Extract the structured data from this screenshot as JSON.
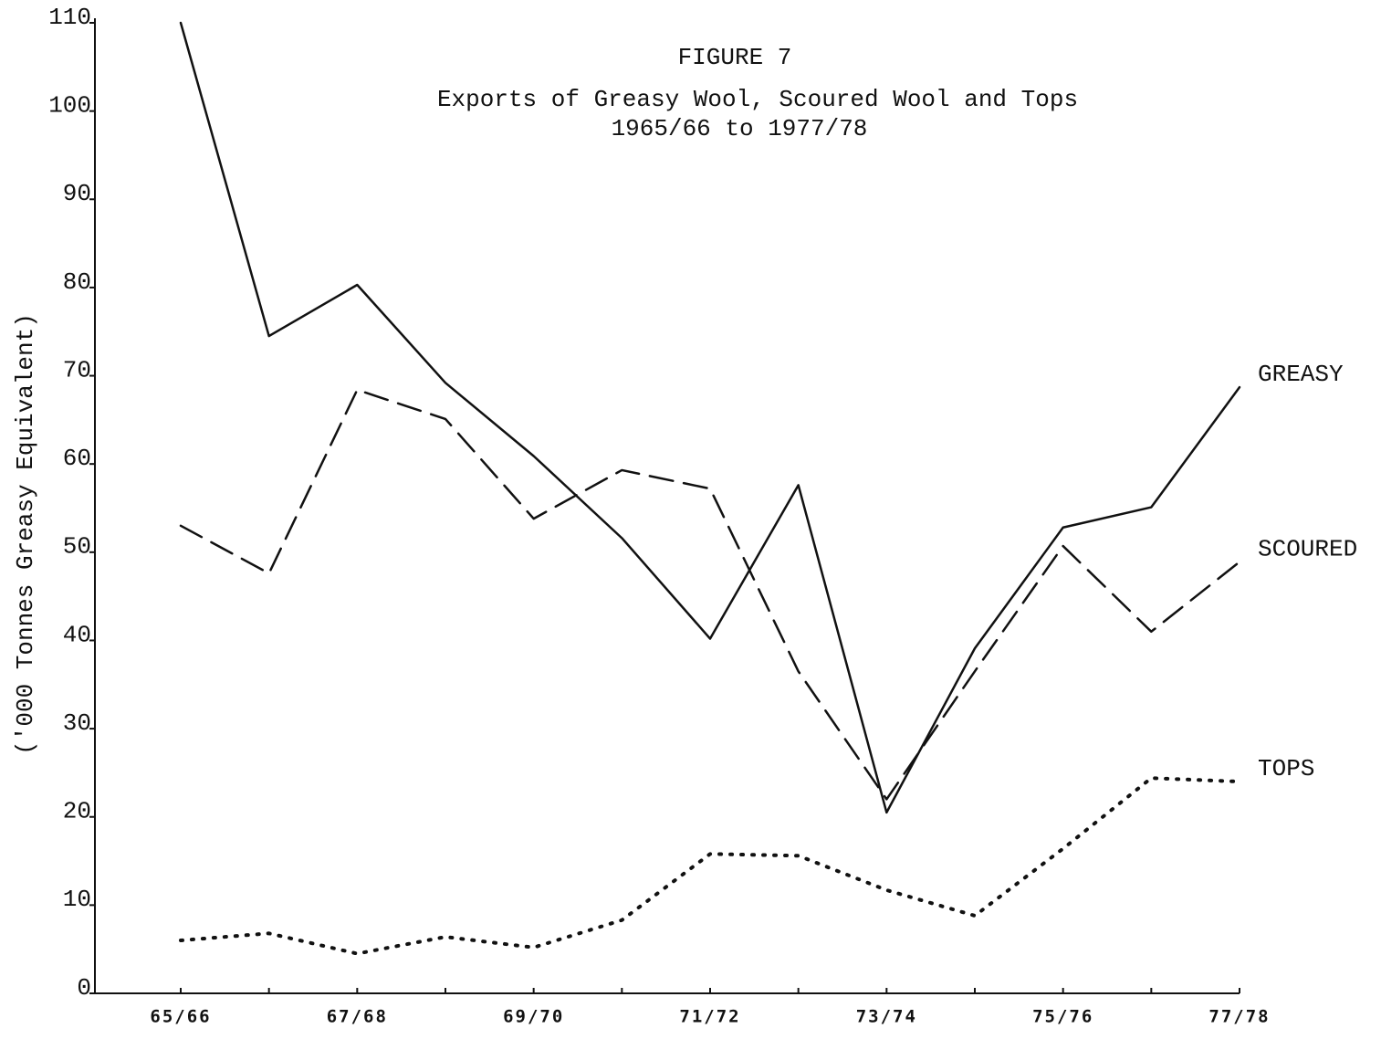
{
  "chart_data": {
    "type": "line",
    "title": "FIGURE 7",
    "subtitle": "Exports of Greasy Wool, Scoured Wool and Tops",
    "period": "1965/66 to 1977/78",
    "y_label": "('000 Tonnes Greasy Equivalent)",
    "categories": [
      "65/66",
      null,
      "67/68",
      null,
      "69/70",
      null,
      "71/72",
      null,
      "73/74",
      null,
      "75/76",
      null,
      "77/78"
    ],
    "series": [
      {
        "name": "GREASY",
        "color": "#111111",
        "style": "solid",
        "values": [
          110,
          74.5,
          80.3,
          69.2,
          60.9,
          51.6,
          40.2,
          57.6,
          20.5,
          39.1,
          52.8,
          55.1,
          68.7
        ]
      },
      {
        "name": "SCOURED",
        "color": "#111111",
        "style": "dashed",
        "values": [
          53.0,
          47.6,
          68.4,
          65.1,
          53.8,
          59.3,
          57.2,
          36.5,
          22.0,
          36.5,
          50.7,
          41.0,
          48.9
        ]
      },
      {
        "name": "TOPS",
        "color": "#111111",
        "style": "dotted",
        "values": [
          6.0,
          6.8,
          4.5,
          6.4,
          5.2,
          8.3,
          15.8,
          15.6,
          11.7,
          8.8,
          16.4,
          24.4,
          24.0
        ]
      }
    ],
    "ylim": [
      0,
      110
    ],
    "yticks": [
      0,
      10,
      20,
      30,
      40,
      50,
      60,
      70,
      80,
      90,
      100,
      110
    ],
    "grid": false
  }
}
